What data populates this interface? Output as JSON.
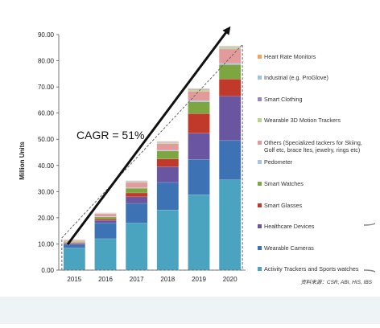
{
  "chart_data": {
    "type": "bar",
    "stacked": true,
    "ylabel": "Million Units",
    "ylim": [
      0,
      90
    ],
    "yticks": [
      "0.00",
      "10.00",
      "20.00",
      "30.00",
      "40.00",
      "50.00",
      "60.00",
      "70.00",
      "80.00",
      "90.00"
    ],
    "categories": [
      "2015",
      "2016",
      "2017",
      "2018",
      "2019",
      "2020"
    ],
    "series": [
      {
        "name": "Activity Trackers and Sports watches",
        "color": "#4aa3bf",
        "values": [
          8.5,
          12.0,
          18.0,
          23.0,
          28.8,
          34.5
        ]
      },
      {
        "name": "Wearable Cameras",
        "color": "#3d72b5",
        "values": [
          1.2,
          6.0,
          7.5,
          10.5,
          13.5,
          15.0
        ]
      },
      {
        "name": "Healthcare Devices",
        "color": "#6a56a0",
        "values": [
          0.5,
          1.0,
          2.5,
          6.0,
          10.0,
          17.0
        ]
      },
      {
        "name": "Smart Glasses",
        "color": "#c0392b",
        "values": [
          0.2,
          0.5,
          1.5,
          3.0,
          7.5,
          6.5
        ]
      },
      {
        "name": "Smart Watches",
        "color": "#7da540",
        "values": [
          0.3,
          0.8,
          1.8,
          3.0,
          4.5,
          5.5
        ]
      },
      {
        "name": "Pedometer",
        "color": "#a8c2e8",
        "values": [
          0.1,
          0.2,
          0.2,
          0.3,
          0.5,
          0.5
        ]
      },
      {
        "name": "Others (Specialized tackers for Skiing, Golf etc, brace ltes, jewelry, rings etc)",
        "color": "#e39a9a",
        "values": [
          0.5,
          1.0,
          2.0,
          2.5,
          3.5,
          5.5
        ]
      },
      {
        "name": "Wearable 3D Motion Trackers",
        "color": "#b9d38a",
        "values": [
          0.1,
          0.1,
          0.2,
          0.3,
          0.5,
          0.5
        ]
      },
      {
        "name": "Smart Clothing",
        "color": "#9787c0",
        "values": [
          0.1,
          0.1,
          0.2,
          0.2,
          0.2,
          0.2
        ]
      },
      {
        "name": "Industrial (e.g. ProGlove)",
        "color": "#9dc6da",
        "values": [
          0.1,
          0.1,
          0.2,
          0.2,
          0.2,
          0.2
        ]
      },
      {
        "name": "Heart Rate Monitors",
        "color": "#f0a35a",
        "values": [
          0.1,
          0.1,
          0.1,
          0.2,
          0.2,
          0.2
        ]
      }
    ],
    "annotation": "CAGR = 51%",
    "source": "资料来源：CSR, ABI, HIS, IBS"
  }
}
